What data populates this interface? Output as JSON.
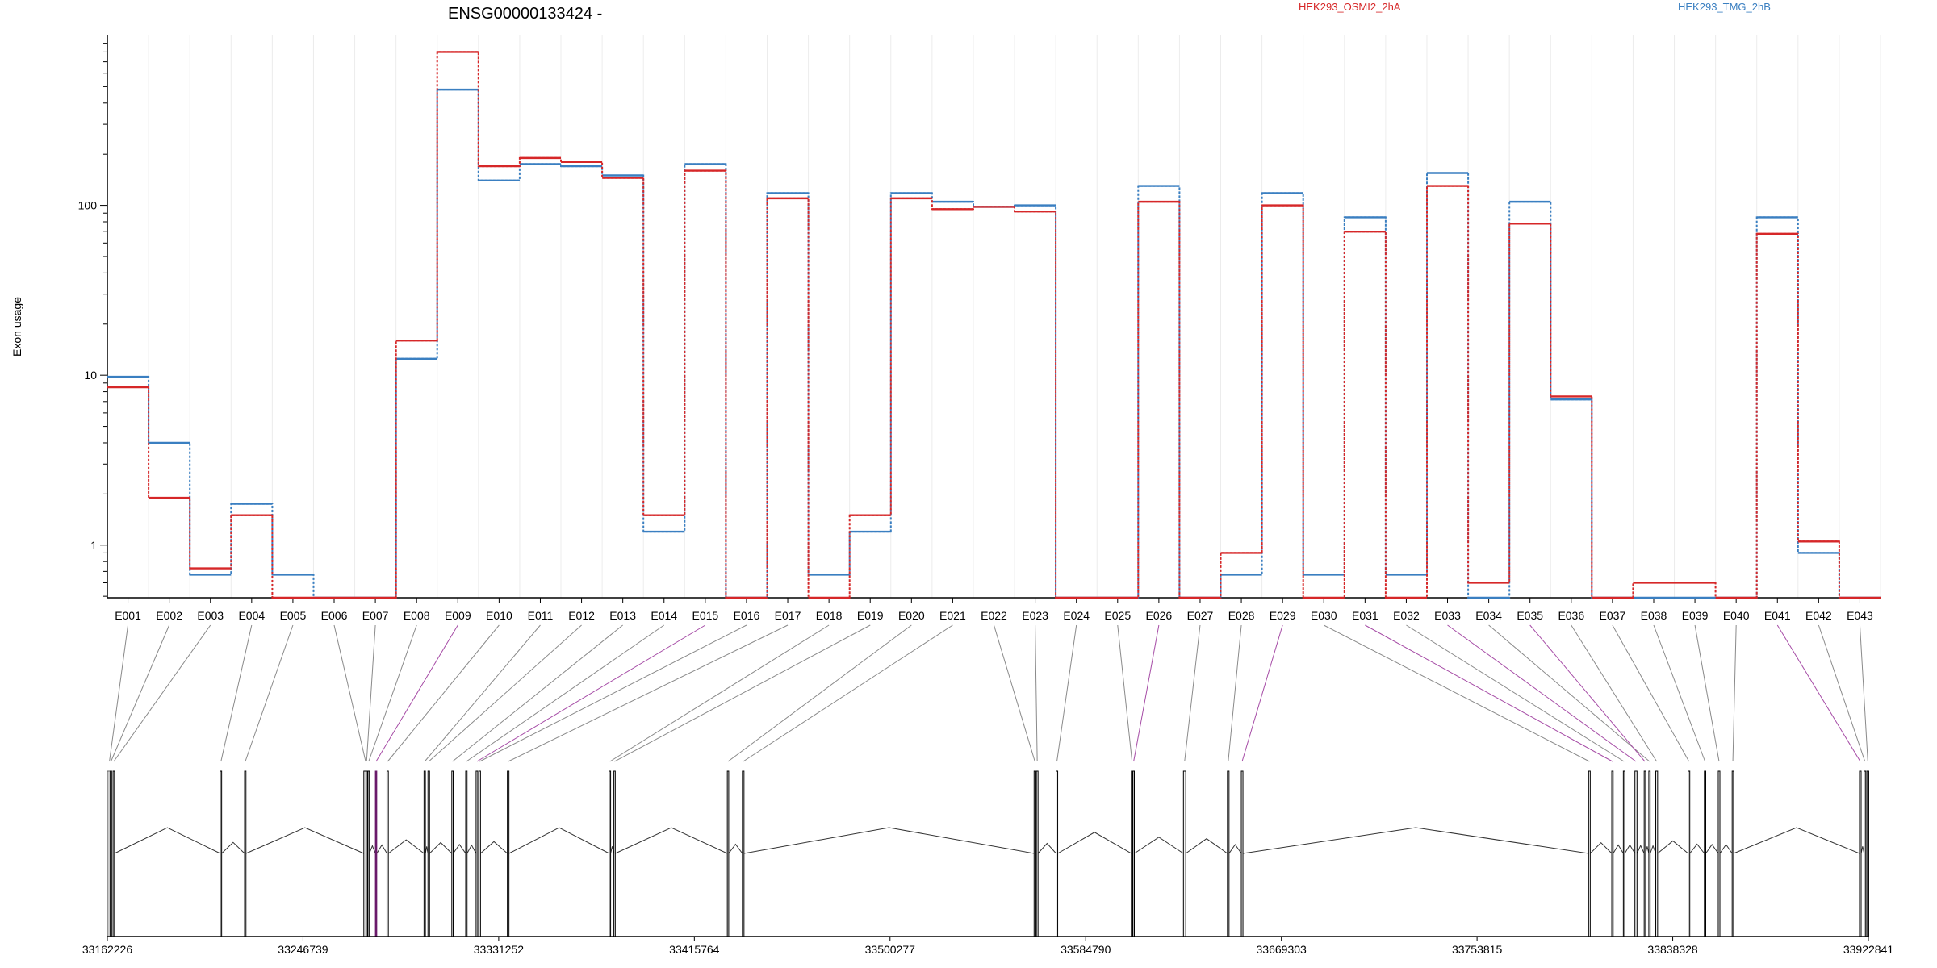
{
  "chart_data": {
    "type": "line",
    "title": "ENSG00000133424 -",
    "ylabel": "Exon usage",
    "yscale": "log",
    "ylim": [
      0.49,
      1000
    ],
    "yticks": [
      "1",
      "10",
      "100"
    ],
    "yticks_values": [
      1,
      10,
      100
    ],
    "grid": "vertical, per exon",
    "legend_placement": "top-right",
    "colors": {
      "series1": "#d62728",
      "series2": "#3a7fc1",
      "highlight": "#a64ca6",
      "exon_fill": "#c8c8c8",
      "dark_exon": "#6a1a6a"
    },
    "categories": [
      "E001",
      "E002",
      "E003",
      "E004",
      "E005",
      "E006",
      "E007",
      "E008",
      "E009",
      "E010",
      "E011",
      "E012",
      "E013",
      "E014",
      "E015",
      "E016",
      "E017",
      "E018",
      "E019",
      "E020",
      "E021",
      "E022",
      "E023",
      "E024",
      "E025",
      "E026",
      "E027",
      "E028",
      "E029",
      "E030",
      "E031",
      "E032",
      "E033",
      "E034",
      "E035",
      "E036",
      "E037",
      "E038",
      "E039",
      "E040",
      "E041",
      "E042",
      "E043"
    ],
    "series": [
      {
        "name": "HEK293_OSMI2_2hA",
        "color": "#d62728",
        "values": [
          8.5,
          1.9,
          0.73,
          1.5,
          0.49,
          0.49,
          0.49,
          16,
          800,
          170,
          190,
          180,
          145,
          1.5,
          160,
          0.49,
          110,
          0.49,
          1.5,
          110,
          95,
          98,
          92,
          0.49,
          0.49,
          105,
          0.49,
          0.9,
          100,
          0.49,
          70,
          0.49,
          130,
          0.6,
          78,
          7.5,
          0.49,
          0.6,
          0.6,
          0.49,
          68,
          1.05,
          0.49
        ]
      },
      {
        "name": "HEK293_TMG_2hB",
        "color": "#3a7fc1",
        "values": [
          9.8,
          4,
          0.67,
          1.75,
          0.67,
          0.49,
          0.49,
          12.5,
          480,
          140,
          175,
          170,
          150,
          1.2,
          175,
          0.49,
          118,
          0.67,
          1.2,
          118,
          105,
          98,
          100,
          0.49,
          0.49,
          130,
          0.49,
          0.67,
          118,
          0.67,
          85,
          0.67,
          155,
          0.49,
          105,
          7.2,
          0.49,
          0.49,
          0.49,
          0.49,
          85,
          0.9,
          0.49
        ]
      }
    ],
    "genomic_axis": {
      "ticks": [
        "33162226",
        "33246739",
        "33331252",
        "33415764",
        "33500277",
        "33584790",
        "33669303",
        "33753815",
        "33838328",
        "33922841"
      ],
      "start": 33162226,
      "end": 33922841,
      "exon_starts": [
        33162226,
        33163500,
        33164700,
        33211000,
        33221500,
        33273000,
        33273900,
        33274800,
        33278000,
        33283000,
        33299000,
        33300700,
        33311000,
        33317000,
        33321500,
        33322700,
        33335000,
        33379000,
        33381000,
        33430000,
        33436500,
        33562500,
        33563500,
        33572000,
        33604500,
        33605200,
        33627000,
        33646000,
        33652000,
        33802000,
        33812000,
        33817000,
        33822000,
        33828000,
        33826000,
        33831000,
        33845000,
        33852000,
        33858000,
        33864000,
        33919000,
        33921000,
        33922200
      ],
      "exon_widths": [
        1800,
        500,
        600,
        600,
        600,
        1600,
        600,
        600,
        600,
        600,
        600,
        700,
        600,
        600,
        700,
        700,
        700,
        600,
        600,
        600,
        700,
        700,
        700,
        700,
        600,
        600,
        1000,
        700,
        700,
        700,
        600,
        600,
        900,
        600,
        600,
        800,
        700,
        600,
        700,
        600,
        700,
        700,
        800
      ],
      "highlighted_exons": [
        "E009",
        "E015",
        "E026",
        "E029",
        "E031",
        "E033",
        "E035",
        "E041"
      ]
    }
  }
}
